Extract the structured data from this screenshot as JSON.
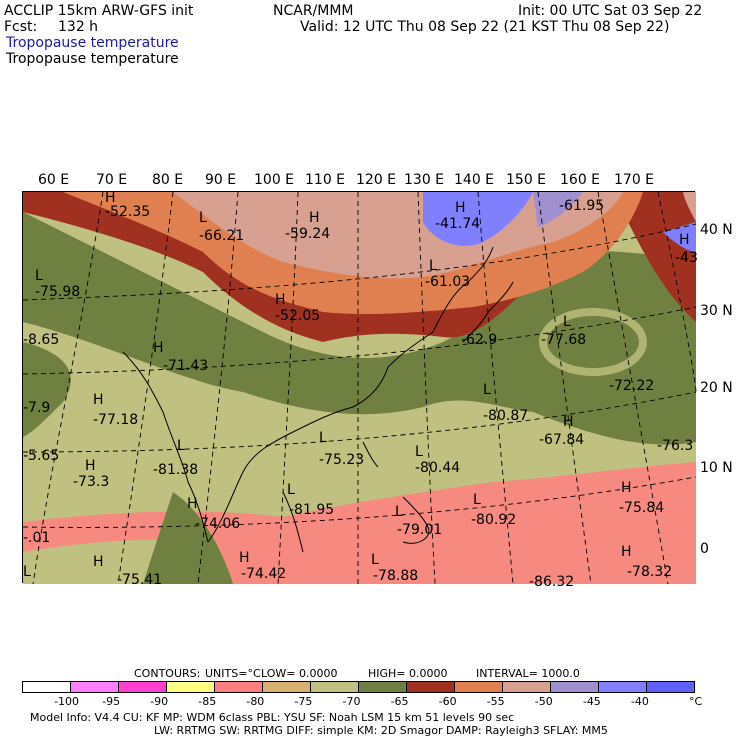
{
  "header": {
    "model_title": "ACCLIP 15km ARW-GFS init",
    "center": "NCAR/MMM",
    "init": "Init: 00 UTC Sat 03 Sep 22",
    "fcst_label": "Fcst:",
    "fcst_value": "132 h",
    "valid": "Valid: 12 UTC Thu 08 Sep 22 (21 KST Thu 08 Sep 22)",
    "field_title_1": "Tropopause temperature",
    "field_title_2": "Tropopause temperature"
  },
  "map": {
    "lon_labels": [
      "60 E",
      "70 E",
      "80 E",
      "90 E",
      "100 E",
      "110 E",
      "120 E",
      "130 E",
      "140 E",
      "150 E",
      "160 E",
      "170 E"
    ],
    "lat_labels": [
      "40 N",
      "30 N",
      "20 N",
      "10 N",
      "0"
    ],
    "annotations": [
      {
        "kind": "H",
        "value": "-52.35"
      },
      {
        "kind": "L",
        "value": "-66.21"
      },
      {
        "kind": "H",
        "value": "-59.24"
      },
      {
        "kind": "H",
        "value": "-41.74"
      },
      {
        "kind": "",
        "value": "-61.95"
      },
      {
        "kind": "H",
        "value": "-43"
      },
      {
        "kind": "L",
        "value": "-75.98"
      },
      {
        "kind": "L",
        "value": "-61.03"
      },
      {
        "kind": "H",
        "value": "-52.05"
      },
      {
        "kind": "",
        "value": "-62.9"
      },
      {
        "kind": "",
        "value": "-8.65"
      },
      {
        "kind": "H",
        "value": "-71.43"
      },
      {
        "kind": "L",
        "value": "-77.68"
      },
      {
        "kind": "",
        "value": "-72.22"
      },
      {
        "kind": "H",
        "value": "-77.18"
      },
      {
        "kind": "L",
        "value": "-80.87"
      },
      {
        "kind": "H",
        "value": "-67.84"
      },
      {
        "kind": "",
        "value": "-76.3"
      },
      {
        "kind": "L",
        "value": "-81.38"
      },
      {
        "kind": "L",
        "value": "-75.23"
      },
      {
        "kind": "L",
        "value": "-80.44"
      },
      {
        "kind": "H",
        "value": "-73.3"
      },
      {
        "kind": "H",
        "value": "-74.06"
      },
      {
        "kind": "L",
        "value": "-81.95"
      },
      {
        "kind": "L",
        "value": "-79.01"
      },
      {
        "kind": "L",
        "value": "-80.92"
      },
      {
        "kind": "H",
        "value": "-75.84"
      },
      {
        "kind": "",
        "value": "-7.9"
      },
      {
        "kind": "",
        "value": "-5.65"
      },
      {
        "kind": "",
        "value": "-.01"
      },
      {
        "kind": "H",
        "value": "-75.41"
      },
      {
        "kind": "H",
        "value": "-74.42"
      },
      {
        "kind": "L",
        "value": "-78.88"
      },
      {
        "kind": "",
        "value": "-86.32"
      },
      {
        "kind": "H",
        "value": "-78.32"
      }
    ]
  },
  "footer": {
    "contours": "CONTOURS:",
    "units": "UNITS=°C",
    "low": "LOW=  0.0000",
    "high": "HIGH=  0.0000",
    "interval": "INTERVAL=   1000.0",
    "colorbar_colors": [
      "#ffffff",
      "#ff80ff",
      "#ff40d0",
      "#ffff80",
      "#ff8080",
      "#d8b070",
      "#c0c080",
      "#708040",
      "#a03020",
      "#e08050",
      "#d8a090",
      "#a090d0",
      "#8080ff",
      "#6060ff"
    ],
    "colorbar_ticks": [
      "-100",
      "-95",
      "-90",
      "-85",
      "-80",
      "-75",
      "-70",
      "-65",
      "-60",
      "-55",
      "-50",
      "-45",
      "-40",
      "°C"
    ],
    "model_info_1": "Model Info: V4.4      CU: KF       MP: WDM 6class   PBL: YSU       SF: Noah LSM      15 km    51 levels    90 sec",
    "model_info_2": "LW: RRTMG    SW: RRTMG   DIFF: simple KM: 2D Smagor DAMP: Rayleigh3  SFLAY: MM5"
  }
}
